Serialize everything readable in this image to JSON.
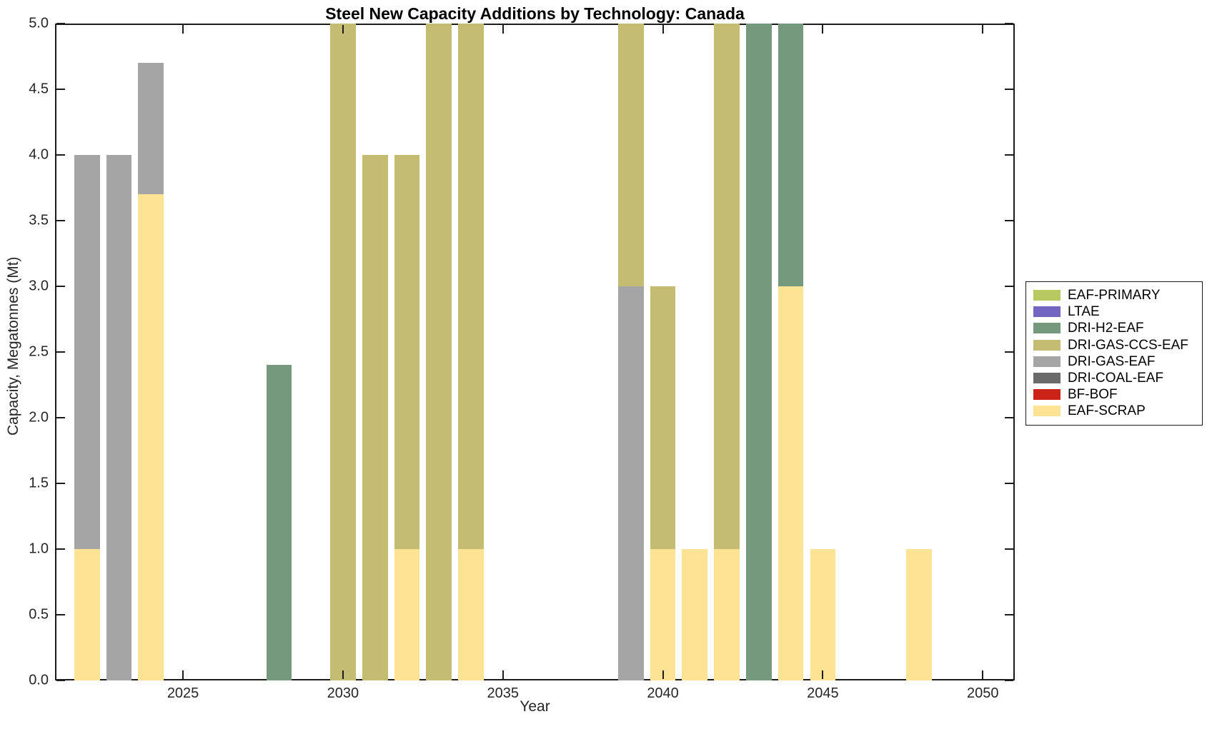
{
  "chart_data": {
    "type": "bar",
    "stacked": true,
    "title": "Steel New Capacity Additions by Technology: Canada",
    "xlabel": "Year",
    "ylabel": "Capacity, Megatonnes (Mt)",
    "xlim": [
      2021,
      2051
    ],
    "ylim": [
      0,
      5
    ],
    "xticks": [
      2025,
      2030,
      2035,
      2040,
      2045,
      2050
    ],
    "yticks": [
      0,
      0.5,
      1,
      1.5,
      2,
      2.5,
      3,
      3.5,
      4,
      4.5,
      5
    ],
    "ytick_decimals": 1,
    "bar_width_years": 0.8,
    "grid": false,
    "legend_position": "right-outside",
    "axis_color": "#1c1c1c",
    "background_color": "#ffffff",
    "clip_note": "stacks are clipped at the axis maximum of 5.0 Mt",
    "technologies": [
      {
        "name": "EAF-PRIMARY",
        "color": "#b7c95f"
      },
      {
        "name": "LTAE",
        "color": "#7266c2"
      },
      {
        "name": "DRI-H2-EAF",
        "color": "#74997c"
      },
      {
        "name": "DRI-GAS-CCS-EAF",
        "color": "#c5bc74"
      },
      {
        "name": "DRI-GAS-EAF",
        "color": "#a5a5a5"
      },
      {
        "name": "DRI-COAL-EAF",
        "color": "#6a6a6a"
      },
      {
        "name": "BF-BOF",
        "color": "#cb2318"
      },
      {
        "name": "EAF-SCRAP",
        "color": "#ffe395"
      }
    ],
    "bars": [
      {
        "year": 2022,
        "segments": [
          {
            "tech": "EAF-SCRAP",
            "value": 1.0
          },
          {
            "tech": "DRI-GAS-EAF",
            "value": 3.0
          }
        ]
      },
      {
        "year": 2023,
        "segments": [
          {
            "tech": "DRI-GAS-EAF",
            "value": 4.0
          }
        ]
      },
      {
        "year": 2024,
        "segments": [
          {
            "tech": "EAF-SCRAP",
            "value": 3.7
          },
          {
            "tech": "DRI-GAS-EAF",
            "value": 1.0
          }
        ]
      },
      {
        "year": 2028,
        "segments": [
          {
            "tech": "DRI-H2-EAF",
            "value": 2.4
          }
        ]
      },
      {
        "year": 2030,
        "segments": [
          {
            "tech": "DRI-GAS-CCS-EAF",
            "value": 5.0
          }
        ]
      },
      {
        "year": 2031,
        "segments": [
          {
            "tech": "DRI-GAS-CCS-EAF",
            "value": 4.0
          }
        ]
      },
      {
        "year": 2032,
        "segments": [
          {
            "tech": "EAF-SCRAP",
            "value": 1.0
          },
          {
            "tech": "DRI-GAS-CCS-EAF",
            "value": 3.0
          }
        ]
      },
      {
        "year": 2033,
        "segments": [
          {
            "tech": "DRI-GAS-CCS-EAF",
            "value": 5.0
          }
        ]
      },
      {
        "year": 2034,
        "segments": [
          {
            "tech": "EAF-SCRAP",
            "value": 1.0
          },
          {
            "tech": "DRI-GAS-CCS-EAF",
            "value": 4.0
          }
        ]
      },
      {
        "year": 2039,
        "segments": [
          {
            "tech": "DRI-GAS-EAF",
            "value": 3.0
          },
          {
            "tech": "DRI-GAS-CCS-EAF",
            "value": 2.0
          }
        ]
      },
      {
        "year": 2040,
        "segments": [
          {
            "tech": "EAF-SCRAP",
            "value": 1.0
          },
          {
            "tech": "DRI-GAS-CCS-EAF",
            "value": 2.0
          }
        ]
      },
      {
        "year": 2041,
        "segments": [
          {
            "tech": "EAF-SCRAP",
            "value": 1.0
          }
        ]
      },
      {
        "year": 2042,
        "segments": [
          {
            "tech": "EAF-SCRAP",
            "value": 1.0
          },
          {
            "tech": "DRI-GAS-CCS-EAF",
            "value": 4.0
          }
        ]
      },
      {
        "year": 2043,
        "segments": [
          {
            "tech": "DRI-H2-EAF",
            "value": 5.0
          }
        ]
      },
      {
        "year": 2044,
        "segments": [
          {
            "tech": "EAF-SCRAP",
            "value": 3.0
          },
          {
            "tech": "DRI-H2-EAF",
            "value": 2.0
          }
        ]
      },
      {
        "year": 2045,
        "segments": [
          {
            "tech": "EAF-SCRAP",
            "value": 1.0
          }
        ]
      },
      {
        "year": 2048,
        "segments": [
          {
            "tech": "EAF-SCRAP",
            "value": 1.0
          }
        ]
      }
    ],
    "legend_order": [
      "EAF-PRIMARY",
      "LTAE",
      "DRI-H2-EAF",
      "DRI-GAS-CCS-EAF",
      "DRI-GAS-EAF",
      "DRI-COAL-EAF",
      "BF-BOF",
      "EAF-SCRAP"
    ]
  }
}
